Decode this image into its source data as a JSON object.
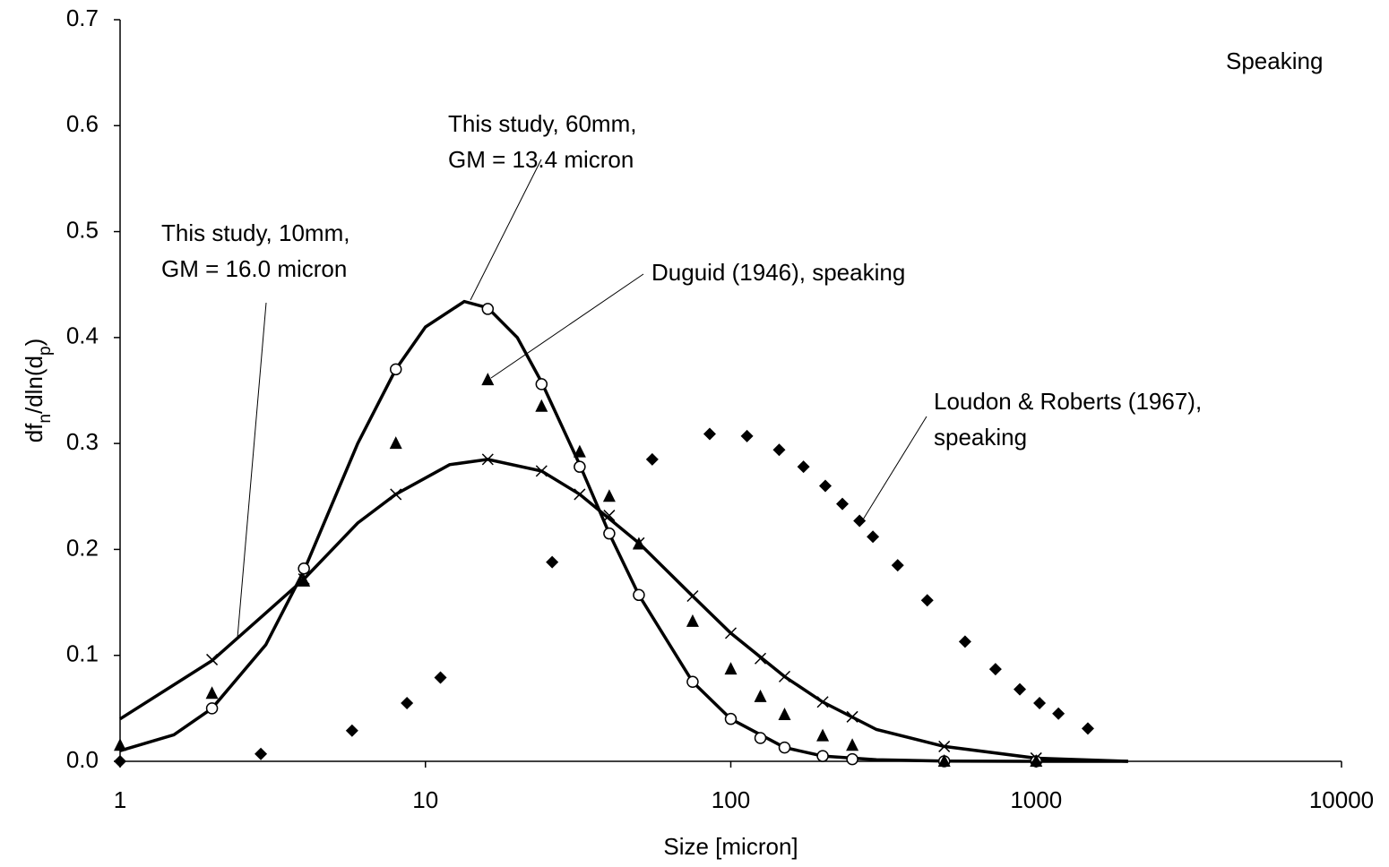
{
  "chart_data": {
    "type": "scatter",
    "xscale": "log",
    "xlabel": "Size [micron]",
    "ylabel": [
      {
        "text": "df"
      },
      {
        "text": "n",
        "sub": true
      },
      {
        "text": "/dln(d"
      },
      {
        "text": "p",
        "sub": true
      },
      {
        "text": ")"
      }
    ],
    "xlim": [
      1,
      10000
    ],
    "ylim": [
      0,
      0.7
    ],
    "xticks": [
      1,
      10,
      100,
      1000,
      10000
    ],
    "yticks": [
      {
        "value": 0,
        "label": "0.0"
      },
      0.1,
      0.2,
      0.3,
      0.4,
      0.5,
      0.6,
      0.7
    ],
    "annotations": [
      {
        "lines": [
          "Speaking"
        ]
      },
      {
        "lines": [
          "This study, 60mm,",
          "GM = 13.4 micron"
        ]
      },
      {
        "lines": [
          "This study, 10mm,",
          "GM = 16.0 micron"
        ]
      },
      {
        "lines": [
          "Duguid (1946), speaking"
        ]
      },
      {
        "lines": [
          "Loudon & Roberts (1967),",
          "speaking"
        ]
      }
    ],
    "series": [
      {
        "marker": "none",
        "line": true,
        "color": "#000000",
        "x": [
          1,
          1.5,
          2,
          3,
          4,
          6,
          8,
          10,
          13.4,
          16,
          20,
          24,
          32,
          40,
          50,
          75,
          100,
          150,
          200,
          300,
          500,
          1000,
          2000
        ],
        "values": [
          0.01,
          0.025,
          0.05,
          0.11,
          0.18,
          0.3,
          0.37,
          0.41,
          0.434,
          0.428,
          0.4,
          0.358,
          0.28,
          0.215,
          0.157,
          0.075,
          0.04,
          0.013,
          0.005,
          0.0015,
          0.0002,
          0,
          0
        ]
      },
      {
        "marker": "none",
        "line": true,
        "color": "#000000",
        "x": [
          1,
          2,
          3,
          4,
          6,
          8,
          12,
          16,
          24,
          32,
          50,
          75,
          100,
          150,
          200,
          300,
          500,
          1000,
          2000
        ],
        "values": [
          0.04,
          0.095,
          0.14,
          0.172,
          0.225,
          0.252,
          0.28,
          0.285,
          0.274,
          0.252,
          0.206,
          0.156,
          0.121,
          0.08,
          0.056,
          0.03,
          0.014,
          0.003,
          0
        ]
      },
      {
        "marker": "circle",
        "color": "#000000",
        "x": [
          2,
          4,
          8,
          16,
          24,
          32,
          40,
          50,
          75,
          100,
          125,
          150,
          200,
          250,
          500,
          1000
        ],
        "values": [
          0.05,
          0.182,
          0.37,
          0.427,
          0.356,
          0.278,
          0.215,
          0.157,
          0.075,
          0.04,
          0.022,
          0.013,
          0.005,
          0.002,
          0,
          0
        ]
      },
      {
        "marker": "cross",
        "color": "#000000",
        "x": [
          2,
          4,
          8,
          16,
          24,
          32,
          40,
          50,
          75,
          100,
          125,
          150,
          200,
          250,
          500,
          1000
        ],
        "values": [
          0.096,
          0.172,
          0.252,
          0.285,
          0.274,
          0.252,
          0.232,
          0.206,
          0.156,
          0.121,
          0.097,
          0.08,
          0.056,
          0.042,
          0.014,
          0.003
        ]
      },
      {
        "marker": "triangle",
        "color": "#000000",
        "x": [
          1,
          2,
          4,
          8,
          16,
          24,
          32,
          40,
          50,
          75,
          100,
          125,
          150,
          200,
          250,
          500,
          1000
        ],
        "values": [
          0.015,
          0.064,
          0.17,
          0.3,
          0.36,
          0.335,
          0.292,
          0.25,
          0.205,
          0.132,
          0.087,
          0.061,
          0.044,
          0.024,
          0.015,
          0,
          0
        ]
      },
      {
        "marker": "diamond",
        "color": "#000000",
        "x": [
          1,
          2.89,
          5.75,
          8.7,
          11.2,
          26,
          55.3,
          85.3,
          113,
          144,
          173,
          204,
          232,
          264,
          292,
          352,
          440,
          585,
          736,
          884,
          1026,
          1183,
          1477
        ],
        "values": [
          0,
          0.007,
          0.029,
          0.055,
          0.079,
          0.188,
          0.285,
          0.309,
          0.307,
          0.294,
          0.278,
          0.26,
          0.243,
          0.227,
          0.212,
          0.185,
          0.152,
          0.113,
          0.087,
          0.068,
          0.055,
          0.045,
          0.031
        ]
      }
    ]
  }
}
